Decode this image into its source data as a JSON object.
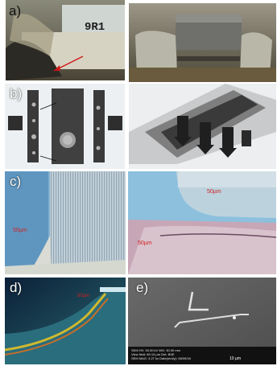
{
  "labels": {
    "a": "a)",
    "b": "b)",
    "c": "c)",
    "d": "d)",
    "e": "e)"
  },
  "a_left": {
    "chip_marking": "9R1"
  },
  "c_left": {
    "scale": "50µm"
  },
  "c_right": {
    "scale_top": "50µm",
    "scale_bottom": "50µm"
  },
  "d_left": {
    "scale": "50µm"
  },
  "e_right": {
    "sem_line1": "SEM HV: 30.00 kV   WD: 30.00 mm",
    "sem_line2": "View field: 89.13 µm   Det: BSE",
    "sem_line3": "SEM MAG: 3.27 kx   Date(m/d/y): 06/09/16",
    "scale": "10 µm"
  },
  "colors": {
    "panel_a_bg": "#7b7a6d",
    "panel_b_bg": "#e9ecef",
    "panel_c_bg": "#7fb0cf",
    "panel_d_bg": "#1a2c3c",
    "panel_e_bg": "#5b5b5b"
  }
}
